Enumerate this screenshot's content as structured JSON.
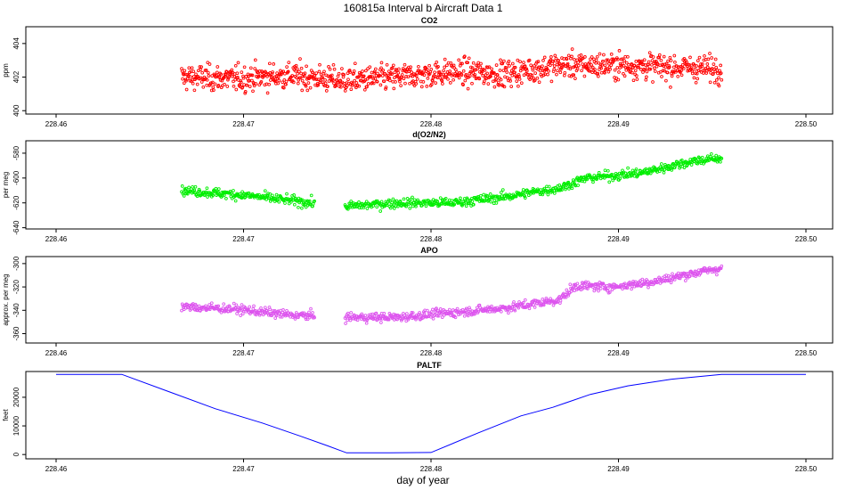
{
  "figure": {
    "title": "160815a   Interval b Aircraft Data 1",
    "xlabel": "day of year"
  },
  "chart_data": [
    {
      "type": "scatter",
      "title": "CO2",
      "ylabel": "ppm",
      "color": "#ff0000",
      "xlim": [
        228.46,
        228.5
      ],
      "ylim": [
        399.8,
        405.0
      ],
      "xticks": [
        "228.46",
        "228.47",
        "228.48",
        "228.49",
        "228.50"
      ],
      "yticks": [
        400,
        402,
        404
      ],
      "series": [
        {
          "x_start": 228.4667,
          "x_end": 228.4955,
          "points": [
            [
              0,
              402.0
            ],
            [
              0.1,
              401.9
            ],
            [
              0.2,
              402.1
            ],
            [
              0.3,
              401.8
            ],
            [
              0.4,
              402.0
            ],
            [
              0.5,
              402.3
            ],
            [
              0.6,
              402.2
            ],
            [
              0.7,
              402.7
            ],
            [
              0.8,
              402.7
            ],
            [
              0.9,
              402.6
            ],
            [
              1.0,
              402.5
            ]
          ],
          "noise": 0.8,
          "count": 1100
        }
      ]
    },
    {
      "type": "scatter",
      "title": "d(O2/N2)",
      "ylabel": "per meg",
      "color": "#00ee00",
      "xlim": [
        228.46,
        228.5
      ],
      "ylim": [
        -641,
        -570
      ],
      "xticks": [
        "228.46",
        "228.47",
        "228.48",
        "228.49",
        "228.50"
      ],
      "yticks": [
        -640,
        -620,
        -600,
        -580
      ],
      "series": [
        {
          "x_start": 228.4667,
          "x_end": 228.4955,
          "gap": [
            228.4738,
            228.4754
          ],
          "points": [
            [
              0,
              -610
            ],
            [
              0.12,
              -614
            ],
            [
              0.24,
              -620
            ],
            [
              0.3,
              -623
            ],
            [
              0.4,
              -620
            ],
            [
              0.5,
              -620
            ],
            [
              0.6,
              -615
            ],
            [
              0.7,
              -608
            ],
            [
              0.75,
              -600
            ],
            [
              0.85,
              -596
            ],
            [
              0.95,
              -586
            ],
            [
              1.0,
              -584
            ]
          ],
          "noise": 4,
          "count": 900
        }
      ]
    },
    {
      "type": "scatter",
      "title": "APO",
      "ylabel": "approx. per meg",
      "color": "#dd55ee",
      "xlim": [
        228.46,
        228.5
      ],
      "ylim": [
        -368,
        -294
      ],
      "xticks": [
        "228.46",
        "228.47",
        "228.48",
        "228.49",
        "228.50"
      ],
      "yticks": [
        -360,
        -340,
        -320,
        -300
      ],
      "series": [
        {
          "x_start": 228.4667,
          "x_end": 228.4955,
          "gap": [
            228.4738,
            228.4754
          ],
          "points": [
            [
              0,
              -337
            ],
            [
              0.1,
              -339
            ],
            [
              0.2,
              -344
            ],
            [
              0.3,
              -346
            ],
            [
              0.4,
              -346
            ],
            [
              0.5,
              -342
            ],
            [
              0.6,
              -338
            ],
            [
              0.7,
              -331
            ],
            [
              0.73,
              -319
            ],
            [
              0.8,
              -320
            ],
            [
              0.88,
              -315
            ],
            [
              0.95,
              -308
            ],
            [
              1.0,
              -304
            ]
          ],
          "noise": 4,
          "count": 900
        }
      ]
    },
    {
      "type": "line",
      "title": "PALTF",
      "ylabel": "feet",
      "color": "#0000ff",
      "xlim": [
        228.46,
        228.5
      ],
      "ylim": [
        -1500,
        29000
      ],
      "xticks": [
        "228.46",
        "228.47",
        "228.48",
        "228.49",
        "228.50"
      ],
      "yticks": [
        0,
        10000,
        20000
      ],
      "series": [
        {
          "x": [
            228.46,
            228.4635,
            228.466,
            228.4685,
            228.471,
            228.473,
            228.4745,
            228.4755,
            228.4778,
            228.48,
            228.4825,
            228.4848,
            228.4865,
            228.4885,
            228.4905,
            228.4928,
            228.4955,
            228.5
          ],
          "y": [
            28000,
            28000,
            22000,
            16000,
            11000,
            6500,
            3000,
            600,
            600,
            700,
            7500,
            13500,
            16500,
            21000,
            24000,
            26300,
            28000,
            28000
          ]
        }
      ]
    }
  ]
}
